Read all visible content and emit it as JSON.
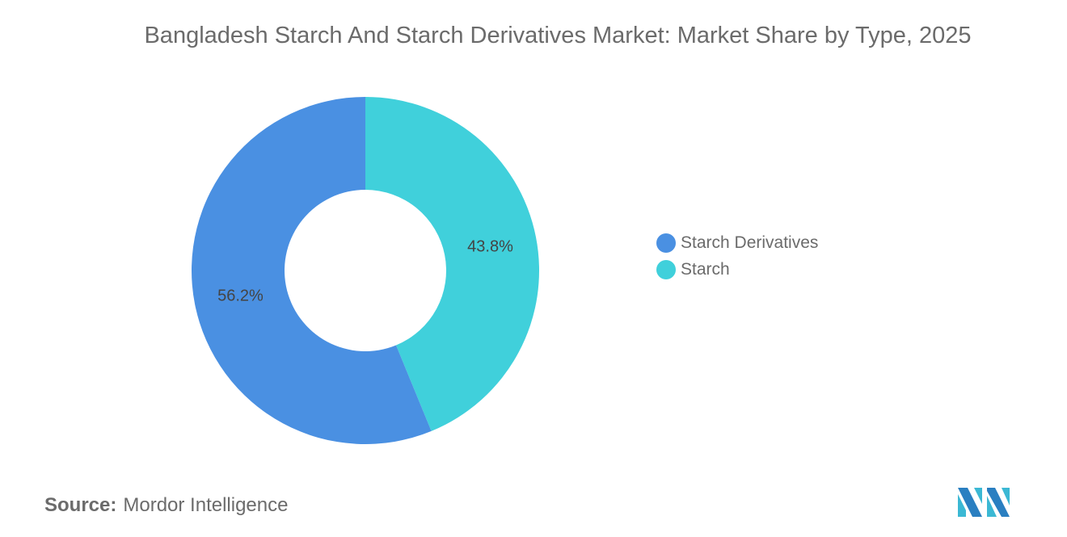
{
  "title": "Bangladesh Starch And Starch Derivatives Market: Market Share by Type, 2025",
  "source": {
    "label": "Source:",
    "value": "Mordor Intelligence"
  },
  "chart_data": {
    "type": "pie",
    "variant": "donut",
    "title": "Bangladesh Starch And Starch Derivatives Market: Market Share by Type, 2025",
    "legend_position": "right",
    "slices": [
      {
        "name": "Starch",
        "value": 43.8,
        "label": "43.8%",
        "color": "#40D0DB"
      },
      {
        "name": "Starch Derivatives",
        "value": 56.2,
        "label": "56.2%",
        "color": "#4A90E2"
      }
    ],
    "legend": [
      {
        "name": "Starch Derivatives",
        "color": "#4A90E2"
      },
      {
        "name": "Starch",
        "color": "#40D0DB"
      }
    ]
  }
}
